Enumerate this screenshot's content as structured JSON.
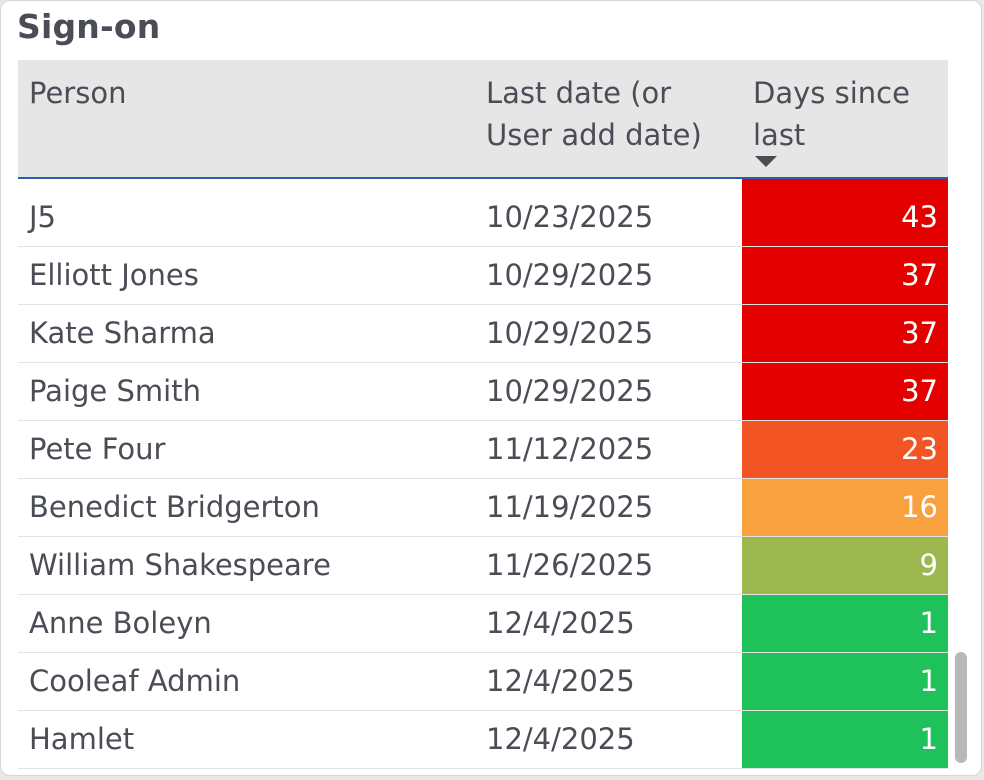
{
  "title": "Sign-on",
  "columns": {
    "person": "Person",
    "date": "Last date (or User add date)",
    "days": "Days since last"
  },
  "sort": {
    "column": "days",
    "direction": "descending"
  },
  "colors": {
    "red": "#e50000",
    "orange_red": "#f25423",
    "orange": "#f9a03f",
    "olive_green": "#9cb84f",
    "green": "#1fc15b",
    "header_bg": "#e6e6e6",
    "header_border": "#2a5cb0",
    "text": "#4a4d55"
  },
  "rows": [
    {
      "person": "J5",
      "date": "10/23/2025",
      "days": "43",
      "color": "#e50000"
    },
    {
      "person": "Elliott Jones",
      "date": "10/29/2025",
      "days": "37",
      "color": "#e50000"
    },
    {
      "person": "Kate Sharma",
      "date": "10/29/2025",
      "days": "37",
      "color": "#e50000"
    },
    {
      "person": "Paige Smith",
      "date": "10/29/2025",
      "days": "37",
      "color": "#e50000"
    },
    {
      "person": "Pete Four",
      "date": "11/12/2025",
      "days": "23",
      "color": "#f25423"
    },
    {
      "person": "Benedict Bridgerton",
      "date": "11/19/2025",
      "days": "16",
      "color": "#f9a03f"
    },
    {
      "person": "William Shakespeare",
      "date": "11/26/2025",
      "days": "9",
      "color": "#9cb84f"
    },
    {
      "person": "Anne Boleyn",
      "date": "12/4/2025",
      "days": "1",
      "color": "#1fc15b"
    },
    {
      "person": "Cooleaf Admin",
      "date": "12/4/2025",
      "days": "1",
      "color": "#1fc15b"
    },
    {
      "person": "Hamlet",
      "date": "12/4/2025",
      "days": "1",
      "color": "#1fc15b"
    }
  ]
}
